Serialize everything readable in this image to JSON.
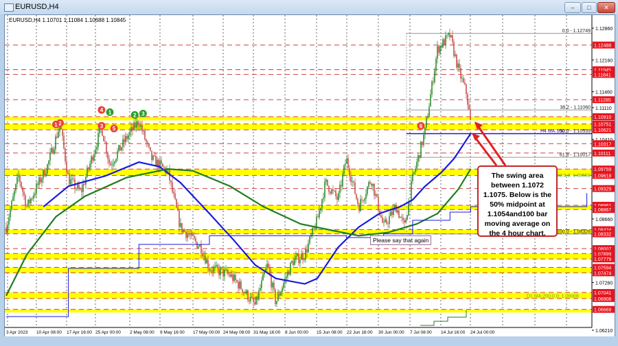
{
  "window": {
    "title": "EURUSD,H4",
    "buttons": [
      "minimize",
      "maximize",
      "close"
    ]
  },
  "ohlc_header": "EURUSD,H4  1.10701 1.11084 1.10688 1.10845",
  "annotation": {
    "callout": "The swing area between 1.1072 1.1075. Below is the 50% midpoint at 1.1054and100 bar moving average on the 4 hour chart.",
    "tooltip": "Please say that again"
  },
  "chart_data": {
    "type": "candlestick",
    "symbol": "EURUSD",
    "timeframe": "H4",
    "ylim": [
      1.0605,
      1.13
    ],
    "x_ticks": [
      "3 Apr 2023",
      "10 Apr 08:00",
      "17 Apr 16:00",
      "25 Apr 00:00",
      "2 May 08:00",
      "9 May 16:00",
      "17 May 00:00",
      "24 May 08:00",
      "31 May 16:00",
      "8 Jun 00:00",
      "15 Jun 08:00",
      "22 Jun 16:00",
      "30 Jun 00:00",
      "7 Jul 08:00",
      "14 Jul 16:00",
      "24 Jul 00:00"
    ],
    "y_ticks": [
      "1.12860",
      "1.12160",
      "1.11460",
      "1.11110",
      "1.10410",
      "1.08660",
      "1.07260",
      "1.06210"
    ],
    "price_path": [
      [
        "2023-04-03",
        1.0848
      ],
      [
        "2023-04-06",
        1.0961
      ],
      [
        "2023-04-08",
        1.0893
      ],
      [
        "2023-04-13",
        1.0984
      ],
      [
        "2023-04-16",
        1.1074
      ],
      [
        "2023-04-18",
        1.0954
      ],
      [
        "2023-04-21",
        1.0924
      ],
      [
        "2023-04-26",
        1.1068
      ],
      [
        "2023-04-28",
        1.0984
      ],
      [
        "2023-05-02",
        1.1044
      ],
      [
        "2023-05-05",
        1.1082
      ],
      [
        "2023-05-08",
        1.0999
      ],
      [
        "2023-05-12",
        1.0969
      ],
      [
        "2023-05-15",
        1.0848
      ],
      [
        "2023-05-20",
        1.0803
      ],
      [
        "2023-05-22",
        1.0758
      ],
      [
        "2023-05-27",
        1.0742
      ],
      [
        "2023-05-30",
        1.0712
      ],
      [
        "2023-06-02",
        1.0675
      ],
      [
        "2023-06-05",
        1.0765
      ],
      [
        "2023-06-07",
        1.0682
      ],
      [
        "2023-06-11",
        1.0772
      ],
      [
        "2023-06-14",
        1.0788
      ],
      [
        "2023-06-17",
        1.0863
      ],
      [
        "2023-06-19",
        1.0946
      ],
      [
        "2023-06-22",
        1.0908
      ],
      [
        "2023-06-24",
        1.0999
      ],
      [
        "2023-06-27",
        1.0893
      ],
      [
        "2023-06-30",
        1.0954
      ],
      [
        "2023-07-03",
        1.0848
      ],
      [
        "2023-07-06",
        1.0893
      ],
      [
        "2023-07-08",
        1.0848
      ],
      [
        "2023-07-10",
        1.0954
      ],
      [
        "2023-07-13",
        1.1059
      ],
      [
        "2023-07-16",
        1.124
      ],
      [
        "2023-07-19",
        1.127
      ],
      [
        "2023-07-21",
        1.1195
      ],
      [
        "2023-07-23",
        1.1142
      ],
      [
        "2023-07-24",
        1.1074
      ]
    ],
    "moving_averages": [
      {
        "name": "H4 MA:100",
        "color": "#1a1adc",
        "points": [
          [
            "2023-04-12",
            1.0893
          ],
          [
            "2023-04-18",
            1.0938
          ],
          [
            "2023-04-27",
            1.0961
          ],
          [
            "2023-05-05",
            1.0991
          ],
          [
            "2023-05-10",
            1.0981
          ],
          [
            "2023-05-15",
            1.0946
          ],
          [
            "2023-05-22",
            1.0878
          ],
          [
            "2023-05-28",
            1.0818
          ],
          [
            "2023-06-02",
            1.0765
          ],
          [
            "2023-06-07",
            1.0735
          ],
          [
            "2023-06-14",
            1.0723
          ],
          [
            "2023-06-17",
            1.0735
          ],
          [
            "2023-06-22",
            1.0803
          ],
          [
            "2023-06-27",
            1.0848
          ],
          [
            "2023-07-02",
            1.0878
          ],
          [
            "2023-07-07",
            1.0893
          ],
          [
            "2023-07-10",
            1.0908
          ],
          [
            "2023-07-13",
            1.0938
          ],
          [
            "2023-07-17",
            1.0969
          ],
          [
            "2023-07-20",
            1.0999
          ],
          [
            "2023-07-24",
            1.1054
          ]
        ]
      },
      {
        "name": "H4 MA:200",
        "color": "#1e7d1e",
        "points": [
          [
            "2023-04-03",
            1.0697
          ],
          [
            "2023-04-08",
            1.0788
          ],
          [
            "2023-04-15",
            1.0871
          ],
          [
            "2023-04-22",
            1.0916
          ],
          [
            "2023-05-02",
            1.0957
          ],
          [
            "2023-05-12",
            1.0976
          ],
          [
            "2023-05-18",
            1.0972
          ],
          [
            "2023-05-27",
            1.0938
          ],
          [
            "2023-06-04",
            1.0893
          ],
          [
            "2023-06-13",
            1.0855
          ],
          [
            "2023-06-21",
            1.084
          ],
          [
            "2023-06-27",
            1.0829
          ],
          [
            "2023-07-04",
            1.0836
          ],
          [
            "2023-07-11",
            1.0855
          ],
          [
            "2023-07-16",
            1.0878
          ],
          [
            "2023-07-21",
            1.0931
          ],
          [
            "2023-07-24",
            1.0976
          ]
        ]
      },
      {
        "name": "D1 MA:100",
        "color": "#1a1adc",
        "points": [
          [
            "2023-04-03",
            1.0651
          ],
          [
            "2023-04-18",
            1.0757
          ],
          [
            "2023-05-05",
            1.081
          ],
          [
            "2023-05-22",
            1.0829
          ],
          [
            "2023-06-07",
            1.0829
          ],
          [
            "2023-06-24",
            1.0825
          ],
          [
            "2023-07-03",
            1.0833
          ],
          [
            "2023-07-10",
            1.0863
          ],
          [
            "2023-07-19",
            1.0881
          ],
          [
            "2023-07-24",
            1.0893
          ],
          [
            "2023-08-21",
            1.0923
          ]
        ]
      }
    ],
    "levels": [
      1.12488,
      1.11945,
      1.11841,
      1.11285,
      1.1091,
      1.10751,
      1.10621,
      1.10317,
      1.10111,
      1.09759,
      1.09618,
      1.09329,
      1.08961,
      1.08867,
      1.08424,
      1.08332,
      1.08007,
      1.07899,
      1.07779,
      1.07594,
      1.07474,
      1.07041,
      1.06908,
      1.06669
    ],
    "zones": [
      [
        1.1091,
        1.1083
      ],
      [
        1.10751,
        1.10621
      ],
      [
        1.09759,
        1.09618
      ],
      [
        1.08961,
        1.08867
      ],
      [
        1.08424,
        1.08332
      ],
      [
        1.07899,
        1.07779
      ],
      [
        1.07594,
        1.07474
      ],
      [
        1.07041,
        1.06908
      ],
      [
        1.06669,
        1.066
      ]
    ],
    "fibonacci": [
      {
        "label": "0.0 - 1.12749",
        "price": 1.12749
      },
      {
        "label": "38.2 - 1.11060",
        "price": 1.1106
      },
      {
        "label": "50.0 - 1.10539",
        "price": 1.10539
      },
      {
        "label": "61.8 - 1.10017",
        "price": 1.10017
      },
      {
        "label": "100.0 - 1.08328",
        "price": 1.08328
      }
    ],
    "ma_labels": [
      {
        "label": "H4 MA:100",
        "price": 1.10539,
        "color": "#1a1adc"
      },
      {
        "label": "200:0.0: 1.09559",
        "price": 1.09559,
        "color": "#6aa81a"
      },
      {
        "label": "D1 MA:200:0.0: 1.06908",
        "price": 1.06908,
        "color": "#6aa81a"
      }
    ],
    "swing_markers": [
      {
        "n": "1",
        "color": "#e8413a",
        "date": "2023-04-15",
        "price": 1.1074
      },
      {
        "n": "2",
        "color": "#e8413a",
        "date": "2023-04-16",
        "price": 1.1077
      },
      {
        "n": "4",
        "color": "#e8413a",
        "date": "2023-04-26",
        "price": 1.1106
      },
      {
        "n": "1",
        "color": "#2aa02a",
        "date": "2023-04-28",
        "price": 1.1101
      },
      {
        "n": "3",
        "color": "#e8413a",
        "date": "2023-04-26",
        "price": 1.1071
      },
      {
        "n": "5",
        "color": "#e8413a",
        "date": "2023-04-29",
        "price": 1.1065
      },
      {
        "n": "2",
        "color": "#2aa02a",
        "date": "2023-05-04",
        "price": 1.1095
      },
      {
        "n": "3",
        "color": "#2aa02a",
        "date": "2023-05-06",
        "price": 1.1098
      },
      {
        "n": "6",
        "color": "#e8413a",
        "date": "2023-07-12",
        "price": 1.1071
      }
    ],
    "colors": {
      "level_label": "#e8141e",
      "zone": "#ffff00",
      "level_line": "#d04040",
      "bull": "#2e8b2e",
      "bear": "#c85050"
    }
  }
}
